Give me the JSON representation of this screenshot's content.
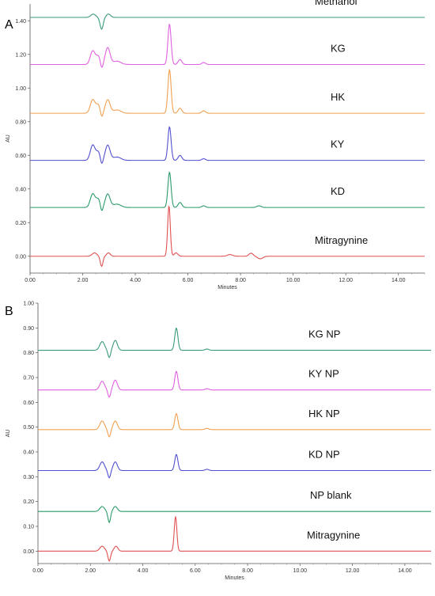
{
  "chart_data": [
    {
      "panel_label": "A",
      "type": "line",
      "xlabel": "Minutes",
      "ylabel": "AU",
      "xlim": [
        0,
        15
      ],
      "ylim": [
        -0.1,
        1.5
      ],
      "x_ticks": [
        "0.00",
        "2.00",
        "4.00",
        "6.00",
        "8.00",
        "10.00",
        "12.00",
        "14.00"
      ],
      "y_ticks": [
        "0.00",
        "0.20",
        "0.40",
        "0.60",
        "0.80",
        "1.00",
        "1.20",
        "1.40"
      ],
      "grid": false,
      "series": [
        {
          "name": "Methanol",
          "color": "#3a9a7a",
          "baseline": 1.42,
          "peaks": [
            [
              2.4,
              0.02,
              0.09
            ],
            [
              2.72,
              -0.07,
              0.06
            ],
            [
              2.98,
              0.02,
              0.08
            ]
          ]
        },
        {
          "name": "KG",
          "color": "#e060e0",
          "baseline": 1.14,
          "peaks": [
            [
              2.38,
              0.08,
              0.09
            ],
            [
              2.6,
              0.05,
              0.09
            ],
            [
              2.72,
              -0.04,
              0.05
            ],
            [
              2.95,
              0.1,
              0.09
            ],
            [
              3.3,
              0.02,
              0.15
            ],
            [
              5.3,
              0.24,
              0.06
            ],
            [
              5.7,
              0.03,
              0.07
            ],
            [
              6.6,
              0.012,
              0.07
            ]
          ]
        },
        {
          "name": "HK",
          "color": "#f0a050",
          "baseline": 0.85,
          "peaks": [
            [
              2.38,
              0.08,
              0.09
            ],
            [
              2.6,
              0.05,
              0.09
            ],
            [
              2.72,
              -0.04,
              0.05
            ],
            [
              2.95,
              0.08,
              0.09
            ],
            [
              3.3,
              0.02,
              0.15
            ],
            [
              5.3,
              0.26,
              0.06
            ],
            [
              5.7,
              0.03,
              0.07
            ],
            [
              6.6,
              0.015,
              0.07
            ]
          ]
        },
        {
          "name": "KY",
          "color": "#5050d0",
          "baseline": 0.57,
          "peaks": [
            [
              2.38,
              0.09,
              0.09
            ],
            [
              2.6,
              0.05,
              0.09
            ],
            [
              2.72,
              -0.04,
              0.05
            ],
            [
              2.95,
              0.09,
              0.09
            ],
            [
              3.3,
              0.02,
              0.15
            ],
            [
              5.3,
              0.2,
              0.06
            ],
            [
              5.7,
              0.03,
              0.07
            ],
            [
              6.6,
              0.01,
              0.07
            ]
          ]
        },
        {
          "name": "KD",
          "color": "#2a9a6a",
          "baseline": 0.29,
          "peaks": [
            [
              2.38,
              0.08,
              0.09
            ],
            [
              2.6,
              0.05,
              0.09
            ],
            [
              2.72,
              -0.04,
              0.05
            ],
            [
              2.95,
              0.08,
              0.09
            ],
            [
              3.3,
              0.02,
              0.15
            ],
            [
              5.3,
              0.21,
              0.06
            ],
            [
              5.7,
              0.03,
              0.07
            ],
            [
              6.6,
              0.01,
              0.07
            ],
            [
              8.7,
              0.01,
              0.08
            ]
          ]
        },
        {
          "name": "Mitragynine",
          "color": "#e05050",
          "baseline": 0.0,
          "peaks": [
            [
              2.45,
              0.02,
              0.09
            ],
            [
              2.72,
              -0.06,
              0.05
            ],
            [
              2.98,
              0.02,
              0.07
            ],
            [
              5.28,
              0.3,
              0.05
            ],
            [
              5.55,
              0.02,
              0.07
            ],
            [
              7.6,
              0.01,
              0.1
            ],
            [
              8.4,
              0.018,
              0.08
            ],
            [
              8.75,
              -0.015,
              0.1
            ]
          ]
        }
      ]
    },
    {
      "panel_label": "B",
      "type": "line",
      "xlabel": "Minutes",
      "ylabel": "AU",
      "xlim": [
        0,
        15
      ],
      "ylim": [
        -0.05,
        1.0
      ],
      "x_ticks": [
        "0.00",
        "2.00",
        "4.00",
        "6.00",
        "8.00",
        "10.00",
        "12.00",
        "14.00"
      ],
      "y_ticks": [
        "0.00",
        "0.10",
        "0.20",
        "0.30",
        "0.40",
        "0.50",
        "0.60",
        "0.70",
        "0.80",
        "0.90",
        "1.00"
      ],
      "grid": false,
      "series": [
        {
          "name": "KG NP",
          "color": "#3a9a7a",
          "baseline": 0.81,
          "peaks": [
            [
              2.45,
              0.035,
              0.09
            ],
            [
              2.72,
              -0.03,
              0.05
            ],
            [
              2.95,
              0.04,
              0.08
            ],
            [
              5.28,
              0.09,
              0.06
            ],
            [
              6.45,
              0.005,
              0.07
            ]
          ]
        },
        {
          "name": "KY NP",
          "color": "#e060e0",
          "baseline": 0.65,
          "peaks": [
            [
              2.45,
              0.035,
              0.09
            ],
            [
              2.72,
              -0.03,
              0.05
            ],
            [
              2.95,
              0.04,
              0.08
            ],
            [
              5.28,
              0.075,
              0.06
            ],
            [
              6.45,
              0.005,
              0.07
            ]
          ]
        },
        {
          "name": "HK NP",
          "color": "#f0a050",
          "baseline": 0.49,
          "peaks": [
            [
              2.45,
              0.035,
              0.09
            ],
            [
              2.72,
              -0.03,
              0.05
            ],
            [
              2.95,
              0.035,
              0.08
            ],
            [
              5.28,
              0.065,
              0.06
            ],
            [
              6.45,
              0.005,
              0.07
            ]
          ]
        },
        {
          "name": "KD NP",
          "color": "#5050d0",
          "baseline": 0.325,
          "peaks": [
            [
              2.45,
              0.035,
              0.09
            ],
            [
              2.72,
              -0.03,
              0.05
            ],
            [
              2.95,
              0.035,
              0.08
            ],
            [
              5.28,
              0.065,
              0.06
            ],
            [
              6.45,
              0.005,
              0.07
            ]
          ]
        },
        {
          "name": "NP blank",
          "color": "#2a9a6a",
          "baseline": 0.16,
          "peaks": [
            [
              2.45,
              0.02,
              0.09
            ],
            [
              2.72,
              -0.045,
              0.05
            ],
            [
              2.95,
              0.02,
              0.08
            ]
          ]
        },
        {
          "name": "Mitragynine",
          "color": "#e05050",
          "baseline": 0.0,
          "peaks": [
            [
              2.45,
              0.02,
              0.09
            ],
            [
              2.72,
              -0.04,
              0.05
            ],
            [
              2.98,
              0.02,
              0.07
            ],
            [
              5.25,
              0.14,
              0.05
            ]
          ]
        }
      ]
    }
  ]
}
